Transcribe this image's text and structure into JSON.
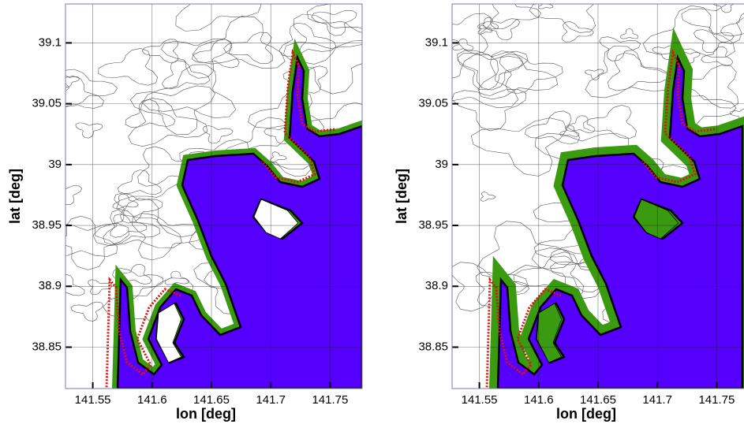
{
  "chart_data": [
    {
      "type": "map",
      "xlabel": "lon [deg]",
      "ylabel": "lat [deg]",
      "xlim": [
        141.527,
        141.777
      ],
      "ylim": [
        38.816,
        39.132
      ],
      "xticks": [
        141.55,
        141.6,
        141.65,
        141.7,
        141.75
      ],
      "yticks": [
        38.85,
        38.9,
        38.95,
        39,
        39.05,
        39.1
      ]
    },
    {
      "type": "map",
      "xlabel": "lon [deg]",
      "ylabel": "lat [deg]",
      "xlim": [
        141.527,
        141.777
      ],
      "ylim": [
        38.816,
        39.132
      ],
      "xticks": [
        141.55,
        141.6,
        141.65,
        141.7,
        141.75
      ],
      "yticks": [
        38.85,
        38.9,
        38.95,
        39,
        39.05,
        39.1
      ]
    }
  ]
}
